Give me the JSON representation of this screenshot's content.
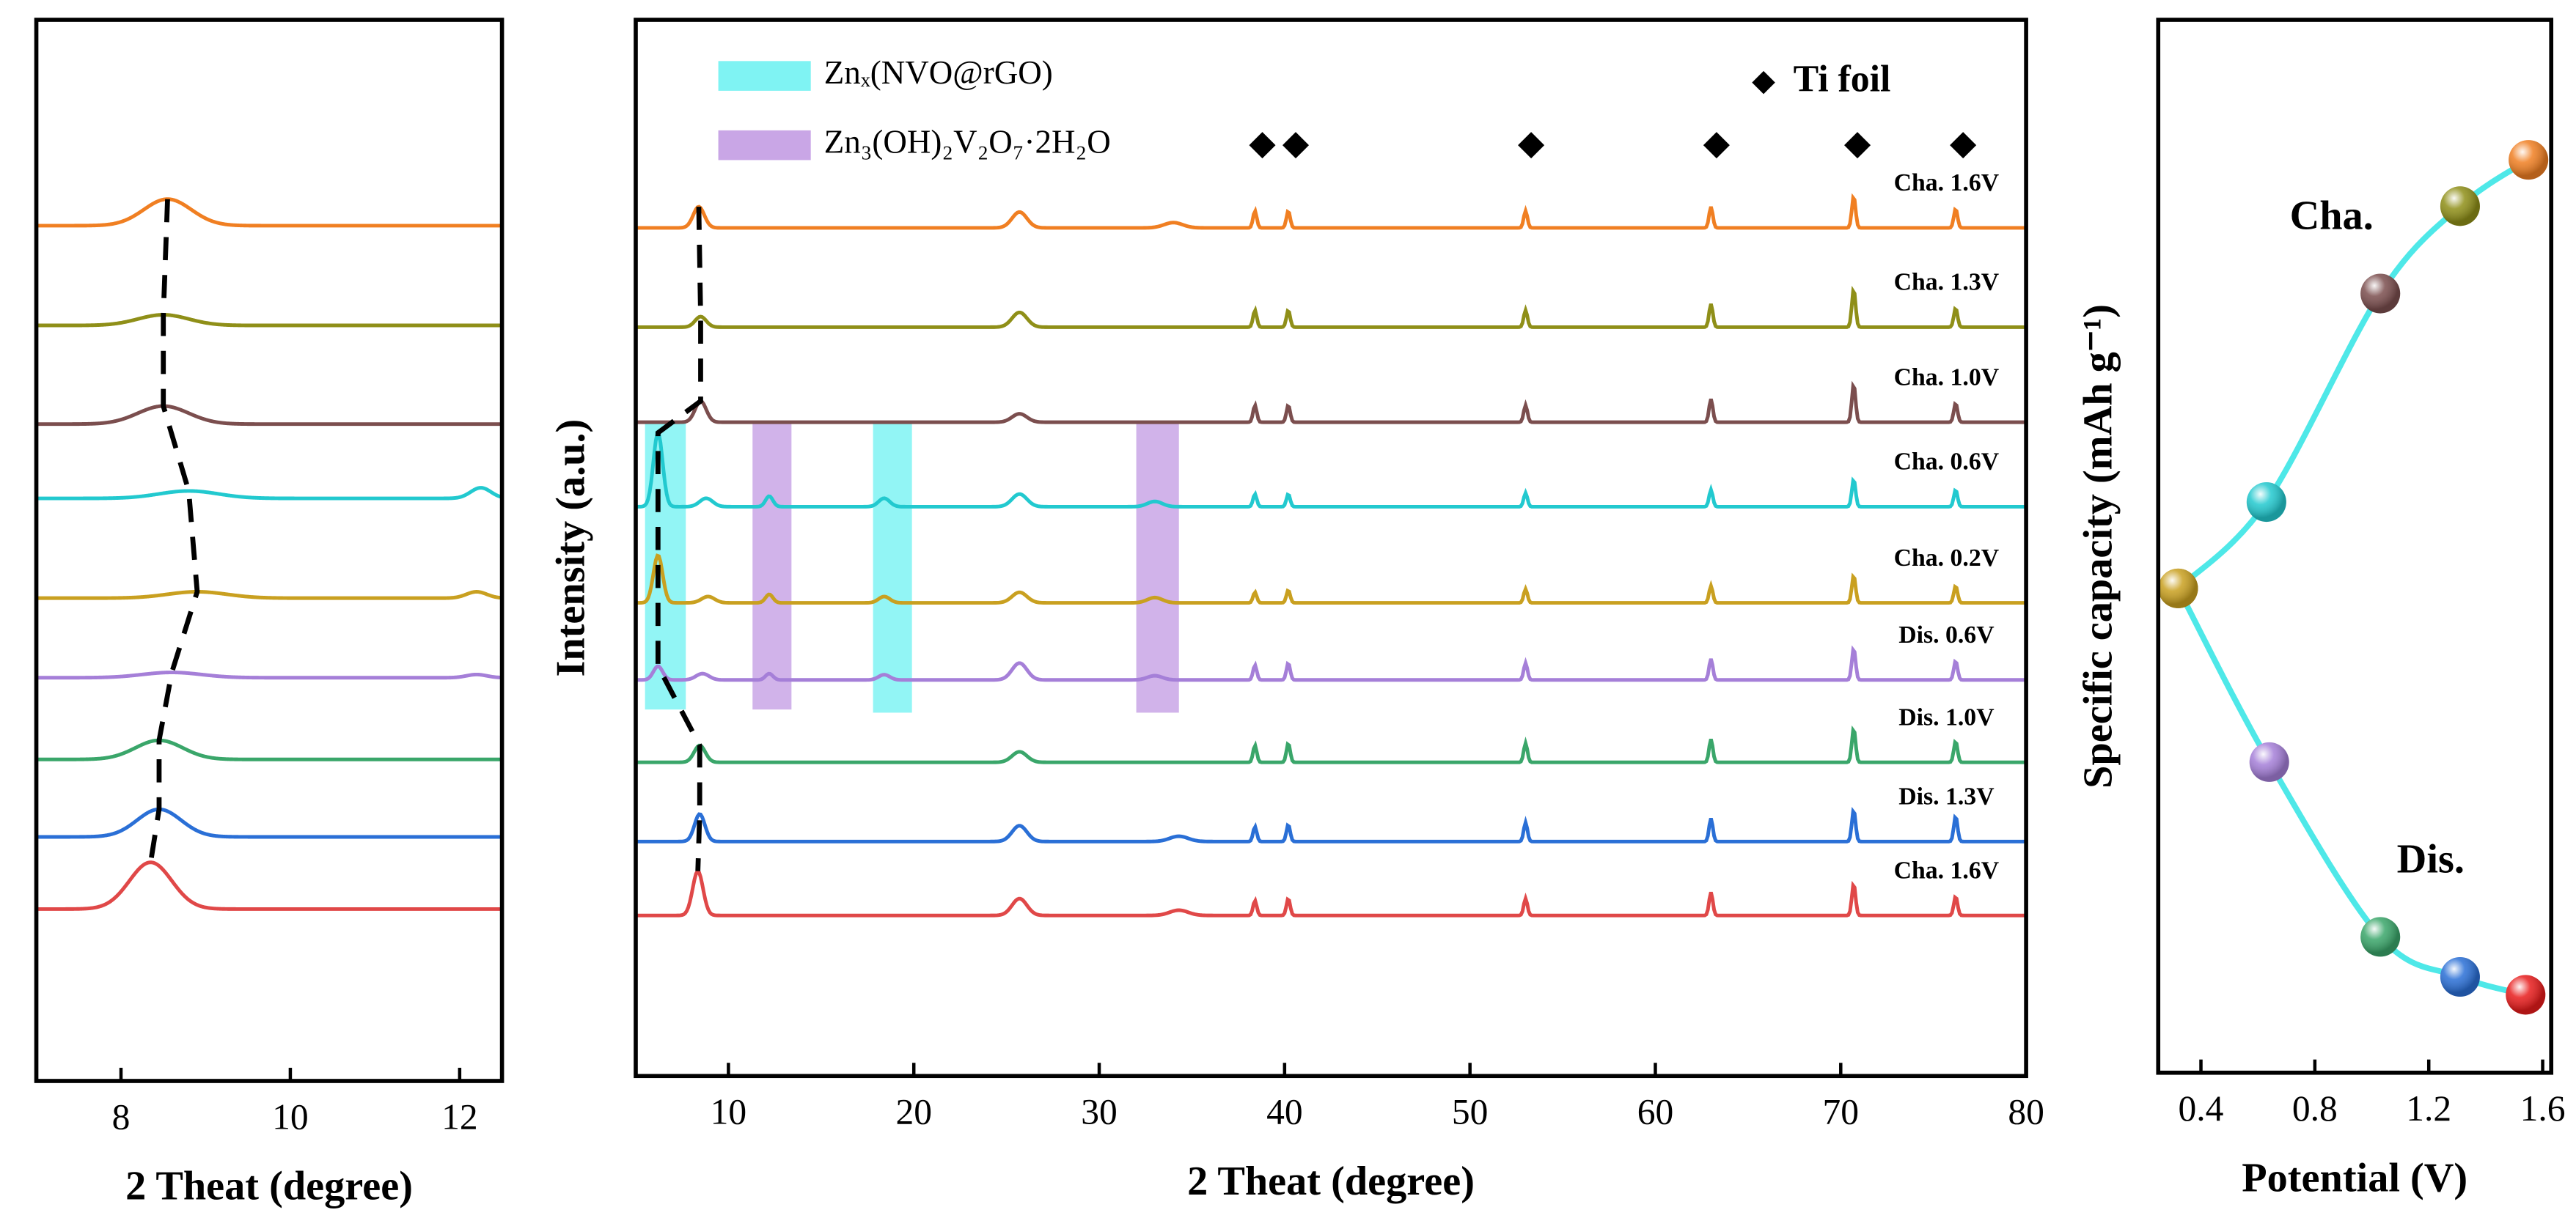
{
  "chart_data": [
    {
      "type": "xrd",
      "xlabel": "2 Theat (degree)",
      "xlim": [
        7,
        12.5
      ],
      "xticks": [
        8,
        10,
        12
      ],
      "ylim": [
        0,
        100
      ],
      "series": [
        {
          "color": "#f07f22",
          "offset": 80.6,
          "peaks": [
            [
              8.55,
              2.5,
              0.28
            ]
          ]
        },
        {
          "color": "#8f8f18",
          "offset": 71.2,
          "peaks": [
            [
              8.5,
              1.0,
              0.3
            ]
          ]
        },
        {
          "color": "#7b4e4e",
          "offset": 61.9,
          "peaks": [
            [
              8.5,
              1.7,
              0.3
            ]
          ]
        },
        {
          "color": "#22c9cf",
          "offset": 54.9,
          "peaks": [
            [
              8.8,
              0.7,
              0.35
            ],
            [
              12.25,
              1.0,
              0.12
            ]
          ]
        },
        {
          "color": "#c9a020",
          "offset": 45.5,
          "peaks": [
            [
              8.9,
              0.6,
              0.35
            ],
            [
              12.2,
              0.6,
              0.12
            ]
          ]
        },
        {
          "color": "#a57fd8",
          "offset": 38.0,
          "peaks": [
            [
              8.6,
              0.5,
              0.35
            ],
            [
              12.2,
              0.3,
              0.12
            ]
          ]
        },
        {
          "color": "#3aa66a",
          "offset": 30.3,
          "peaks": [
            [
              8.45,
              1.8,
              0.28
            ]
          ]
        },
        {
          "color": "#2a6fd6",
          "offset": 23.0,
          "peaks": [
            [
              8.45,
              2.6,
              0.26
            ]
          ]
        },
        {
          "color": "#e04848",
          "offset": 16.2,
          "peaks": [
            [
              8.35,
              4.4,
              0.25
            ]
          ]
        }
      ]
    },
    {
      "type": "xrd",
      "xlabel": "2 Theat (degree)",
      "ylabel": "Intensity (a.u.)",
      "xlim": [
        5,
        80
      ],
      "xticks": [
        10,
        20,
        30,
        40,
        50,
        60,
        70,
        80
      ],
      "ylim": [
        0,
        100
      ],
      "legend": [
        {
          "label": "Znₓ(NVO@rGO)",
          "color": "#7ff3f3"
        },
        {
          "label": "Zn₃(OH)₂V₂O₇·2H₂O",
          "color": "#c9a6e6"
        }
      ],
      "regions": [
        {
          "x": [
            5.5,
            7.7
          ],
          "y": [
            34.7,
            62
          ],
          "color": "#7ff3f3"
        },
        {
          "x": [
            17.8,
            19.9
          ],
          "y": [
            34.4,
            62
          ],
          "color": "#7ff3f3"
        },
        {
          "x": [
            11.3,
            13.4
          ],
          "y": [
            34.7,
            62
          ],
          "color": "#c9a6e6"
        },
        {
          "x": [
            32,
            34.3
          ],
          "y": [
            34.4,
            62
          ],
          "color": "#c9a6e6"
        }
      ],
      "markers": {
        "name": "Ti foil",
        "x": [
          38.8,
          40.6,
          53.3,
          63.3,
          70.9,
          76.6
        ]
      },
      "series": [
        {
          "name": "Cha. 1.6V",
          "color": "#f07f22",
          "offset": 80.3,
          "peaks": [
            [
              8.4,
              2.0,
              0.3
            ],
            [
              25.7,
              1.5,
              0.4
            ],
            [
              34,
              0.5,
              0.5
            ],
            [
              38.4,
              1.6,
              0.1
            ],
            [
              40.2,
              1.6,
              0.1
            ],
            [
              53,
              1.6,
              0.1
            ],
            [
              63,
              2.0,
              0.1
            ],
            [
              70.7,
              3.0,
              0.1
            ],
            [
              76.2,
              1.8,
              0.1
            ]
          ]
        },
        {
          "name": "Cha. 1.3V",
          "color": "#8f8f18",
          "offset": 70.9,
          "peaks": [
            [
              8.5,
              1.0,
              0.3
            ],
            [
              25.7,
              1.4,
              0.4
            ],
            [
              38.4,
              1.6,
              0.1
            ],
            [
              40.2,
              1.6,
              0.1
            ],
            [
              53,
              1.6,
              0.1
            ],
            [
              63,
              2.2,
              0.1
            ],
            [
              70.7,
              3.6,
              0.1
            ],
            [
              76.2,
              1.8,
              0.1
            ]
          ]
        },
        {
          "name": "Cha. 1.0V",
          "color": "#7b4e4e",
          "offset": 61.9,
          "peaks": [
            [
              8.5,
              2.0,
              0.3
            ],
            [
              25.7,
              0.8,
              0.4
            ],
            [
              38.4,
              1.6,
              0.1
            ],
            [
              40.2,
              1.6,
              0.1
            ],
            [
              53,
              1.6,
              0.1
            ],
            [
              63,
              2.2,
              0.1
            ],
            [
              70.7,
              3.6,
              0.1
            ],
            [
              76.2,
              1.8,
              0.1
            ]
          ]
        },
        {
          "name": "Cha. 0.6V",
          "color": "#22c9cf",
          "offset": 53.9,
          "peaks": [
            [
              6.2,
              7.0,
              0.25
            ],
            [
              8.8,
              0.8,
              0.35
            ],
            [
              12.2,
              1.0,
              0.2
            ],
            [
              18.4,
              0.8,
              0.3
            ],
            [
              25.7,
              1.2,
              0.4
            ],
            [
              33,
              0.5,
              0.4
            ],
            [
              38.4,
              1.2,
              0.1
            ],
            [
              40.2,
              1.2,
              0.1
            ],
            [
              53,
              1.3,
              0.1
            ],
            [
              63,
              1.6,
              0.1
            ],
            [
              70.7,
              2.6,
              0.1
            ],
            [
              76.2,
              1.6,
              0.1
            ]
          ]
        },
        {
          "name": "Cha. 0.2V",
          "color": "#c9a020",
          "offset": 44.8,
          "peaks": [
            [
              6.2,
              4.5,
              0.25
            ],
            [
              8.9,
              0.6,
              0.35
            ],
            [
              12.2,
              0.8,
              0.2
            ],
            [
              18.4,
              0.6,
              0.3
            ],
            [
              25.7,
              1.0,
              0.4
            ],
            [
              33,
              0.5,
              0.4
            ],
            [
              38.4,
              1.0,
              0.1
            ],
            [
              40.2,
              1.2,
              0.1
            ],
            [
              53,
              1.3,
              0.1
            ],
            [
              63,
              1.6,
              0.1
            ],
            [
              70.7,
              2.6,
              0.1
            ],
            [
              76.2,
              1.6,
              0.1
            ]
          ]
        },
        {
          "name": "Dis. 0.6V",
          "color": "#a57fd8",
          "offset": 37.5,
          "peaks": [
            [
              6.2,
              1.3,
              0.25
            ],
            [
              8.6,
              0.6,
              0.35
            ],
            [
              12.2,
              0.6,
              0.2
            ],
            [
              18.4,
              0.5,
              0.3
            ],
            [
              25.7,
              1.6,
              0.4
            ],
            [
              33,
              0.4,
              0.4
            ],
            [
              38.4,
              1.4,
              0.1
            ],
            [
              40.2,
              1.6,
              0.1
            ],
            [
              53,
              1.6,
              0.1
            ],
            [
              63,
              2.0,
              0.1
            ],
            [
              70.7,
              3.0,
              0.1
            ],
            [
              76.2,
              1.8,
              0.1
            ]
          ]
        },
        {
          "name": "Dis. 1.0V",
          "color": "#3aa66a",
          "offset": 29.7,
          "peaks": [
            [
              8.45,
              1.6,
              0.3
            ],
            [
              25.7,
              1.0,
              0.4
            ],
            [
              38.4,
              1.6,
              0.1
            ],
            [
              40.2,
              1.8,
              0.1
            ],
            [
              53,
              1.8,
              0.1
            ],
            [
              63,
              2.2,
              0.1
            ],
            [
              70.7,
              3.2,
              0.1
            ],
            [
              76.2,
              2.0,
              0.1
            ]
          ]
        },
        {
          "name": "Dis. 1.3V",
          "color": "#2a6fd6",
          "offset": 22.2,
          "peaks": [
            [
              8.45,
              2.6,
              0.28
            ],
            [
              25.7,
              1.5,
              0.4
            ],
            [
              34.3,
              0.5,
              0.5
            ],
            [
              38.4,
              1.4,
              0.1
            ],
            [
              40.2,
              1.6,
              0.1
            ],
            [
              53,
              1.8,
              0.1
            ],
            [
              63,
              2.2,
              0.1
            ],
            [
              70.7,
              3.0,
              0.1
            ],
            [
              76.2,
              2.4,
              0.1
            ]
          ]
        },
        {
          "name": "Cha. 1.6V",
          "color": "#e04848",
          "offset": 15.2,
          "peaks": [
            [
              8.35,
              4.2,
              0.28
            ],
            [
              25.7,
              1.6,
              0.4
            ],
            [
              34.3,
              0.5,
              0.5
            ],
            [
              38.4,
              1.4,
              0.1
            ],
            [
              40.2,
              1.6,
              0.1
            ],
            [
              53,
              1.6,
              0.1
            ],
            [
              63,
              2.2,
              0.1
            ],
            [
              70.7,
              3.0,
              0.1
            ],
            [
              76.2,
              1.8,
              0.1
            ]
          ]
        }
      ]
    },
    {
      "type": "capacity",
      "xlabel": "Potential (V)",
      "ylabel": "Specific capacity (mAh g⁻¹)",
      "xlim": [
        0.25,
        1.63
      ],
      "xticks": [
        0.4,
        0.8,
        1.2,
        1.6
      ],
      "ylim": [
        0,
        100
      ],
      "line_color": "#4ee8e8",
      "series": [
        {
          "name": "Cha.",
          "x": [
            0.32,
            0.63,
            1.03,
            1.31,
            1.55
          ],
          "values": [
            46,
            54.2,
            74,
            82.3,
            86.7
          ],
          "colors": [
            "#c9a020",
            "#22c9cf",
            "#7b4e4e",
            "#8f8f18",
            "#f07f22"
          ]
        },
        {
          "name": "Dis.",
          "x": [
            0.32,
            0.64,
            1.03,
            1.31,
            1.54
          ],
          "values": [
            46,
            29.5,
            12.9,
            9.1,
            7.4
          ],
          "colors": [
            "#c9a020",
            "#a57fd8",
            "#3aa66a",
            "#2a6fd6",
            "#e81c1c"
          ]
        }
      ]
    }
  ]
}
